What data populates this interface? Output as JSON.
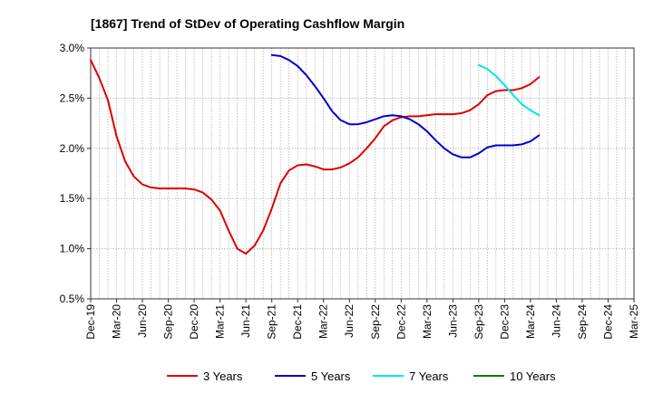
{
  "chart_data": {
    "type": "line",
    "title": "[1867]  Trend of StDev of Operating Cashflow Margin",
    "xlabel": "",
    "ylabel": "",
    "ylim": [
      0.5,
      3.0
    ],
    "y_ticks": [
      0.5,
      1.0,
      1.5,
      2.0,
      2.5,
      3.0
    ],
    "y_tick_labels": [
      "0.5%",
      "1.0%",
      "1.5%",
      "2.0%",
      "2.5%",
      "3.0%"
    ],
    "x_tick_labels": [
      "Dec-19",
      "Mar-20",
      "Jun-20",
      "Sep-20",
      "Dec-20",
      "Mar-21",
      "Jun-21",
      "Sep-21",
      "Dec-21",
      "Mar-22",
      "Jun-22",
      "Sep-22",
      "Dec-22",
      "Mar-23",
      "Jun-23",
      "Sep-23",
      "Dec-23",
      "Mar-24",
      "Jun-24",
      "Sep-24",
      "Dec-24",
      "Mar-25"
    ],
    "grid": true,
    "legend_position": "bottom",
    "series": [
      {
        "name": "3 Years",
        "color": "#dd0000",
        "start_month": 0,
        "values": [
          2.88,
          2.7,
          2.48,
          2.12,
          1.87,
          1.72,
          1.64,
          1.61,
          1.6,
          1.6,
          1.6,
          1.6,
          1.59,
          1.56,
          1.49,
          1.38,
          1.18,
          1.0,
          0.95,
          1.03,
          1.18,
          1.4,
          1.65,
          1.78,
          1.83,
          1.84,
          1.82,
          1.79,
          1.79,
          1.81,
          1.85,
          1.91,
          2.0,
          2.1,
          2.22,
          2.28,
          2.31,
          2.32,
          2.32,
          2.33,
          2.34,
          2.34,
          2.34,
          2.35,
          2.38,
          2.44,
          2.53,
          2.57,
          2.58,
          2.58,
          2.6,
          2.64,
          2.71
        ]
      },
      {
        "name": "5 Years",
        "color": "#0000cc",
        "start_month": 21,
        "values": [
          2.93,
          2.92,
          2.88,
          2.82,
          2.73,
          2.62,
          2.5,
          2.37,
          2.28,
          2.24,
          2.24,
          2.26,
          2.29,
          2.32,
          2.33,
          2.32,
          2.29,
          2.24,
          2.17,
          2.08,
          2.0,
          1.94,
          1.91,
          1.91,
          1.95,
          2.01,
          2.03,
          2.03,
          2.03,
          2.04,
          2.07,
          2.13
        ]
      },
      {
        "name": "7 Years",
        "color": "#00e5e5",
        "start_month": 45,
        "values": [
          2.83,
          2.79,
          2.72,
          2.63,
          2.53,
          2.44,
          2.38,
          2.33
        ]
      },
      {
        "name": "10 Years",
        "color": "#008000",
        "start_month": 0,
        "values": []
      }
    ]
  }
}
